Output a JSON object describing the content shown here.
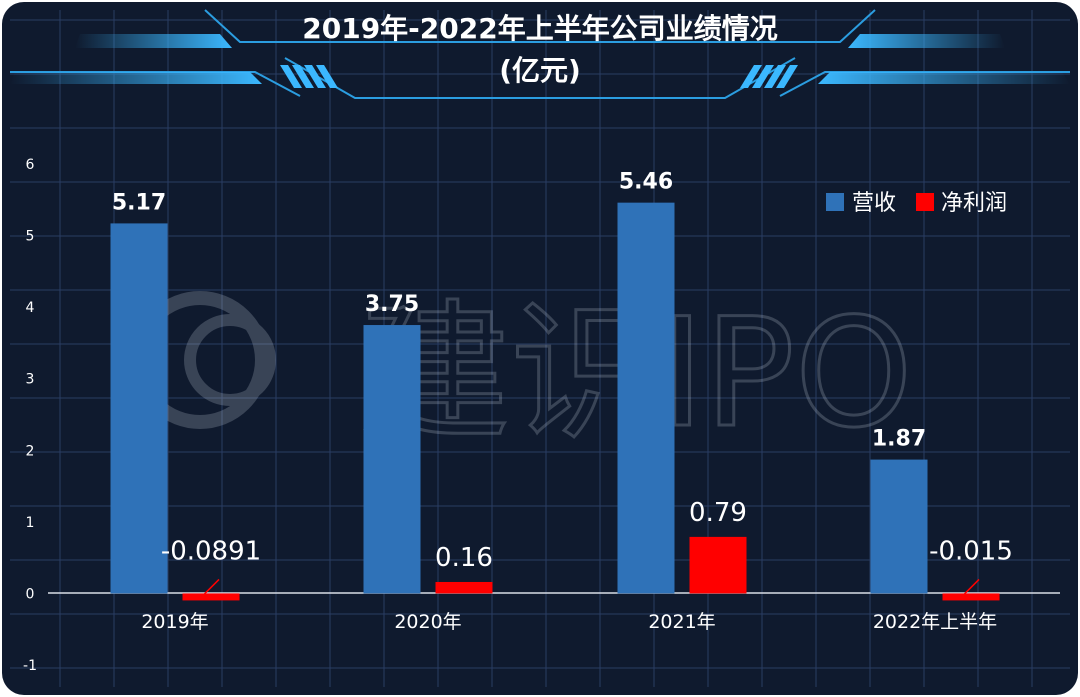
{
  "chart_data": {
    "type": "bar",
    "title": "2019年-2022年上半年公司业绩情况",
    "subtitle": "(亿元)",
    "categories": [
      "2019年",
      "2020年",
      "2021年",
      "2022年上半年"
    ],
    "series": [
      {
        "name": "营收",
        "values": [
          5.17,
          3.75,
          5.46,
          1.87
        ],
        "labels": [
          "5.17",
          "3.75",
          "5.46",
          "1.87"
        ],
        "color": "#2f72b8"
      },
      {
        "name": "净利润",
        "values": [
          -0.0891,
          0.16,
          0.79,
          -0.015
        ],
        "labels": [
          "-0.0891",
          "0.16",
          "0.79",
          "-0.015"
        ],
        "color": "#ff0000"
      }
    ],
    "yticks": [
      "6",
      "5",
      "4",
      "3",
      "2",
      "1",
      "0",
      "-1"
    ],
    "ylim": [
      -1,
      6
    ],
    "grid": true,
    "legend": "top-right"
  },
  "watermark": "建识IPO",
  "colors": {
    "background": "#0f1a2e",
    "grid": "#2a3d63",
    "frame": "#2b9de0",
    "text": "#ffffff"
  }
}
